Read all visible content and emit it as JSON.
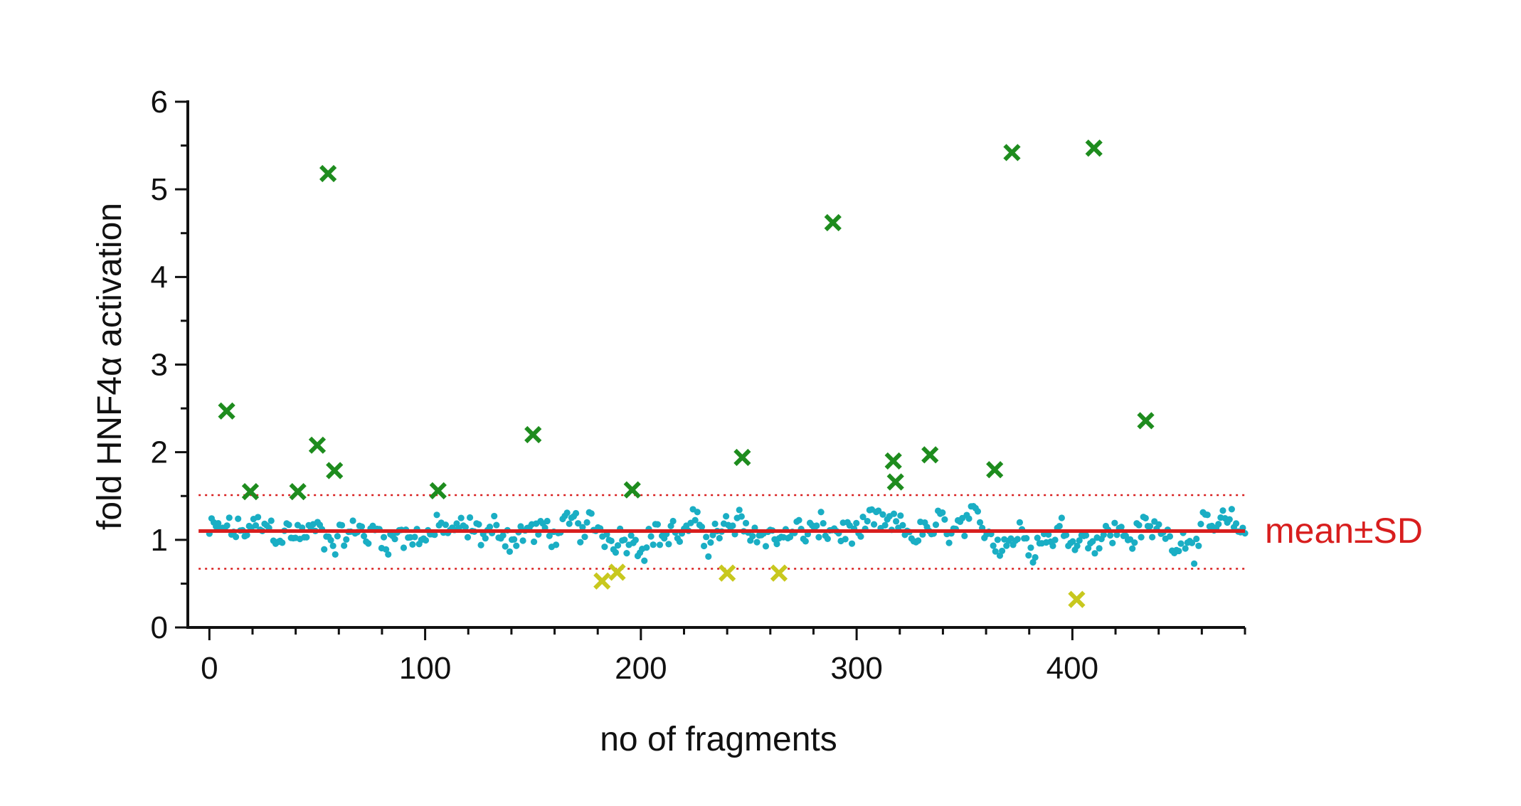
{
  "chart_data": {
    "type": "scatter",
    "xlabel": "no of fragments",
    "ylabel": "fold HNF4α activation",
    "xlim": [
      -10,
      480
    ],
    "ylim": [
      0,
      6
    ],
    "x_ticks": [
      0,
      100,
      200,
      300,
      400
    ],
    "y_ticks": [
      0,
      1,
      2,
      3,
      4,
      5,
      6
    ],
    "grid": false,
    "mean": 1.1,
    "sd_band": [
      0.67,
      1.51
    ],
    "mean_label": "mean±SD",
    "colors": {
      "baseline": "#1aaec4",
      "activators": "#1e8c1e",
      "repressors": "#c8c81e",
      "mean_line": "#d81e1e",
      "axis": "#111111"
    },
    "activators": [
      {
        "x": 8,
        "y": 2.47
      },
      {
        "x": 19,
        "y": 1.55
      },
      {
        "x": 41,
        "y": 1.55
      },
      {
        "x": 50,
        "y": 2.08
      },
      {
        "x": 55,
        "y": 5.18
      },
      {
        "x": 58,
        "y": 1.79
      },
      {
        "x": 106,
        "y": 1.56
      },
      {
        "x": 150,
        "y": 2.2
      },
      {
        "x": 196,
        "y": 1.57
      },
      {
        "x": 247,
        "y": 1.94
      },
      {
        "x": 289,
        "y": 4.62
      },
      {
        "x": 317,
        "y": 1.9
      },
      {
        "x": 318,
        "y": 1.66
      },
      {
        "x": 334,
        "y": 1.97
      },
      {
        "x": 364,
        "y": 1.8
      },
      {
        "x": 372,
        "y": 5.42
      },
      {
        "x": 410,
        "y": 5.47
      },
      {
        "x": 434,
        "y": 2.36
      }
    ],
    "repressors": [
      {
        "x": 182,
        "y": 0.53
      },
      {
        "x": 189,
        "y": 0.63
      },
      {
        "x": 240,
        "y": 0.62
      },
      {
        "x": 264,
        "y": 0.62
      },
      {
        "x": 402,
        "y": 0.32
      }
    ],
    "baseline": {
      "x_range": [
        0,
        480
      ],
      "count": 470,
      "typical_range": [
        0.7,
        1.45
      ],
      "centre": 1.08
    }
  }
}
